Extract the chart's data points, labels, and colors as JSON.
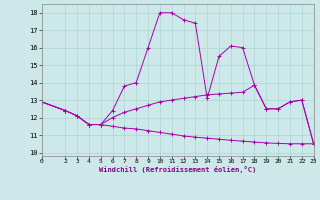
{
  "xlabel": "Windchill (Refroidissement éolien,°C)",
  "bg_color": "#cce8e8",
  "grid_color": "#aad4d4",
  "line_color": "#aa00aa",
  "xlim": [
    0,
    23
  ],
  "ylim": [
    9.8,
    18.5
  ],
  "yticks": [
    10,
    11,
    12,
    13,
    14,
    15,
    16,
    17,
    18
  ],
  "xticks": [
    0,
    2,
    3,
    4,
    5,
    6,
    7,
    8,
    9,
    10,
    11,
    12,
    13,
    14,
    15,
    16,
    17,
    18,
    19,
    20,
    21,
    22,
    23
  ],
  "curve1_x": [
    0,
    2,
    3,
    4,
    5,
    6,
    7,
    8,
    9,
    10,
    11,
    12,
    13,
    14,
    15,
    16,
    17,
    18,
    19,
    20,
    21,
    22,
    23
  ],
  "curve1_y": [
    12.9,
    12.4,
    12.1,
    11.6,
    11.6,
    12.4,
    13.8,
    14.0,
    16.0,
    18.0,
    18.0,
    17.6,
    17.4,
    13.1,
    15.5,
    16.1,
    16.0,
    13.85,
    12.5,
    12.5,
    12.9,
    13.0,
    10.5
  ],
  "curve2_x": [
    0,
    2,
    3,
    4,
    5,
    6,
    7,
    8,
    9,
    10,
    11,
    12,
    13,
    14,
    15,
    16,
    17,
    18,
    19,
    20,
    21,
    22,
    23
  ],
  "curve2_y": [
    12.9,
    12.4,
    12.1,
    11.6,
    11.6,
    12.0,
    12.3,
    12.5,
    12.7,
    12.9,
    13.0,
    13.1,
    13.2,
    13.3,
    13.35,
    13.4,
    13.45,
    13.85,
    12.5,
    12.5,
    12.9,
    13.0,
    10.5
  ],
  "curve3_x": [
    0,
    2,
    3,
    4,
    5,
    6,
    7,
    8,
    9,
    10,
    11,
    12,
    13,
    14,
    15,
    16,
    17,
    18,
    19,
    20,
    21,
    22,
    23
  ],
  "curve3_y": [
    12.9,
    12.4,
    12.1,
    11.6,
    11.6,
    11.5,
    11.4,
    11.35,
    11.25,
    11.15,
    11.05,
    10.95,
    10.88,
    10.82,
    10.76,
    10.7,
    10.65,
    10.6,
    10.55,
    10.52,
    10.5,
    10.5,
    10.5
  ]
}
